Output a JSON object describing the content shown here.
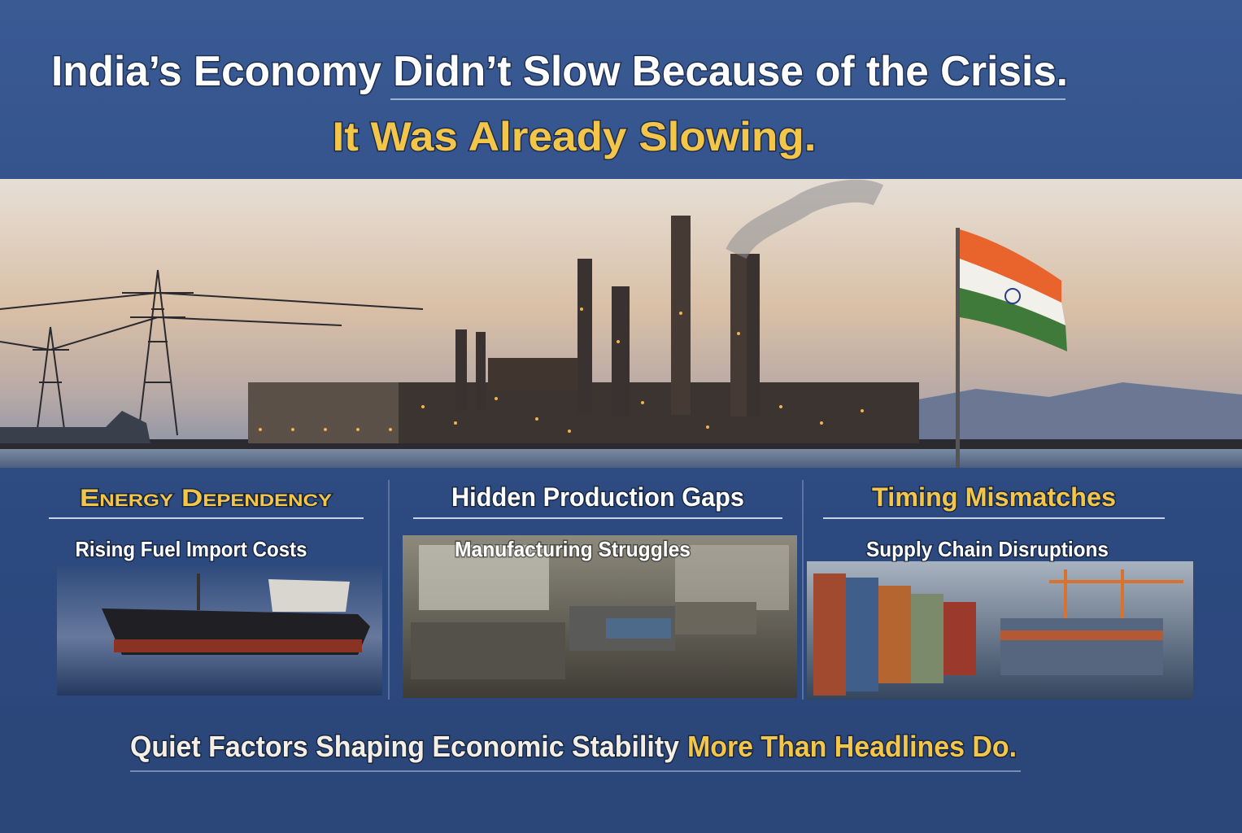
{
  "header": {
    "title": "India’s Economy Didn’t Slow Because of the Crisis.",
    "subtitle": "It Was Already Slowing."
  },
  "panels": [
    {
      "heading": "Energy Dependency",
      "subheading": "Rising Fuel Import Costs"
    },
    {
      "heading": "Hidden Production Gaps",
      "subheading": "Manufacturing Struggles"
    },
    {
      "heading": "Timing Mismatches",
      "subheading": "Supply Chain Disruptions"
    }
  ],
  "footer": {
    "text": "Quiet Factors Shaping Economic Stability",
    "highlight": "More Than Headlines Do."
  }
}
